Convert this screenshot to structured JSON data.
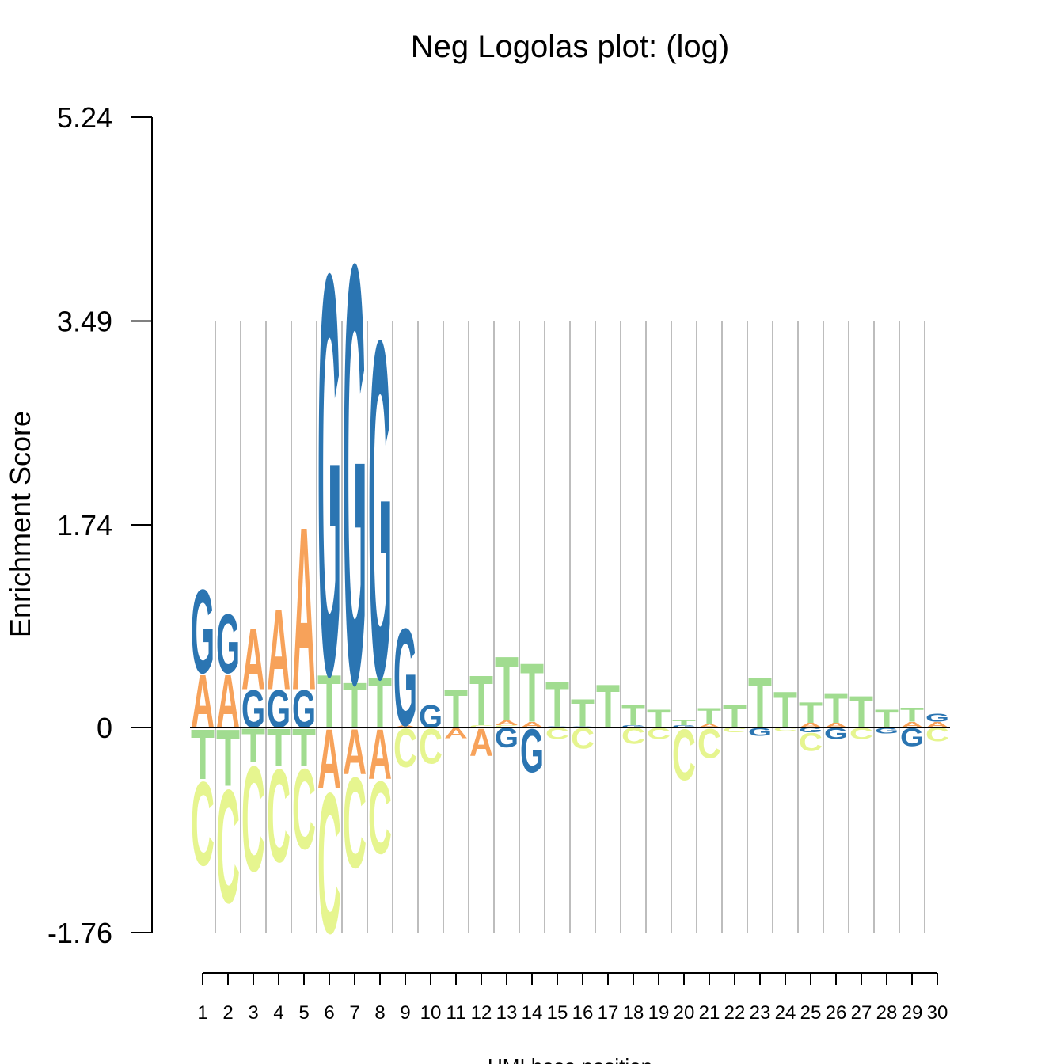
{
  "chart_data": {
    "type": "sequence-logo",
    "title": "Neg Logolas plot: (log)",
    "xlabel": "UMI base position",
    "ylabel": "Enrichment Score",
    "ylim": [
      -1.76,
      5.24
    ],
    "yticks": [
      "5.24",
      "3.49",
      "1.74",
      "0",
      "-1.76"
    ],
    "ytick_values": [
      5.24,
      3.49,
      1.74,
      0,
      -1.76
    ],
    "grid": "vertical",
    "colors": {
      "A": "#f7a25a",
      "C": "#e6f58f",
      "G": "#2b75b2",
      "T": "#a1dc90"
    },
    "positions": [
      {
        "label": "1",
        "pos": [
          [
            "A",
            0.47
          ],
          [
            "G",
            0.74
          ]
        ],
        "neg": [
          [
            "T",
            0.44
          ],
          [
            "C",
            0.74
          ]
        ]
      },
      {
        "label": "2",
        "pos": [
          [
            "A",
            0.47
          ],
          [
            "G",
            0.52
          ]
        ],
        "neg": [
          [
            "T",
            0.5
          ],
          [
            "C",
            1.0
          ]
        ]
      },
      {
        "label": "3",
        "pos": [
          [
            "G",
            0.33
          ],
          [
            "A",
            0.54
          ]
        ],
        "neg": [
          [
            "T",
            0.3
          ],
          [
            "C",
            0.93
          ]
        ]
      },
      {
        "label": "4",
        "pos": [
          [
            "G",
            0.33
          ],
          [
            "A",
            0.71
          ]
        ],
        "neg": [
          [
            "T",
            0.33
          ],
          [
            "C",
            0.82
          ]
        ]
      },
      {
        "label": "5",
        "pos": [
          [
            "G",
            0.33
          ],
          [
            "A",
            1.44
          ]
        ],
        "neg": [
          [
            "T",
            0.33
          ],
          [
            "C",
            0.71
          ]
        ]
      },
      {
        "label": "6",
        "pos": [
          [
            "T",
            0.47
          ],
          [
            "G",
            3.54
          ]
        ],
        "neg": [
          [
            "A",
            0.52
          ],
          [
            "C",
            1.24
          ]
        ]
      },
      {
        "label": "7",
        "pos": [
          [
            "T",
            0.4
          ],
          [
            "G",
            3.7
          ]
        ],
        "neg": [
          [
            "A",
            0.4
          ],
          [
            "C",
            0.8
          ]
        ]
      },
      {
        "label": "8",
        "pos": [
          [
            "T",
            0.44
          ],
          [
            "G",
            2.98
          ]
        ],
        "neg": [
          [
            "A",
            0.44
          ],
          [
            "C",
            0.64
          ]
        ]
      },
      {
        "label": "9",
        "pos": [
          [
            "A",
            0.02
          ],
          [
            "G",
            0.86
          ]
        ],
        "neg": [
          [
            "C",
            0.34
          ]
        ]
      },
      {
        "label": "10",
        "pos": [
          [
            "G",
            0.2
          ]
        ],
        "neg": [
          [
            "C",
            0.31
          ]
        ]
      },
      {
        "label": "11",
        "pos": [
          [
            "T",
            0.34
          ]
        ],
        "neg": [
          [
            "A",
            0.09
          ]
        ]
      },
      {
        "label": "12",
        "pos": [
          [
            "C",
            0.02
          ],
          [
            "T",
            0.44
          ]
        ],
        "neg": [
          [
            "A",
            0.24
          ]
        ]
      },
      {
        "label": "13",
        "pos": [
          [
            "C",
            0.02
          ],
          [
            "A",
            0.04
          ],
          [
            "T",
            0.57
          ]
        ],
        "neg": [
          [
            "G",
            0.17
          ]
        ]
      },
      {
        "label": "14",
        "pos": [
          [
            "A",
            0.05
          ],
          [
            "T",
            0.52
          ]
        ],
        "neg": [
          [
            "G",
            0.38
          ]
        ]
      },
      {
        "label": "15",
        "pos": [
          [
            "G",
            0.01
          ],
          [
            "T",
            0.4
          ]
        ],
        "neg": [
          [
            "C",
            0.1
          ]
        ]
      },
      {
        "label": "16",
        "pos": [
          [
            "G",
            0.01
          ],
          [
            "T",
            0.24
          ]
        ],
        "neg": [
          [
            "C",
            0.18
          ]
        ]
      },
      {
        "label": "17",
        "pos": [
          [
            "T",
            0.38
          ]
        ],
        "neg": []
      },
      {
        "label": "18",
        "pos": [
          [
            "G",
            0.02
          ],
          [
            "T",
            0.18
          ]
        ],
        "neg": [
          [
            "C",
            0.14
          ]
        ]
      },
      {
        "label": "19",
        "pos": [
          [
            "T",
            0.16
          ]
        ],
        "neg": [
          [
            "C",
            0.1
          ]
        ]
      },
      {
        "label": "20",
        "pos": [
          [
            "G",
            0.02
          ],
          [
            "T",
            0.04
          ]
        ],
        "neg": [
          [
            "C",
            0.45
          ]
        ]
      },
      {
        "label": "21",
        "pos": [
          [
            "A",
            0.03
          ],
          [
            "T",
            0.14
          ]
        ],
        "neg": [
          [
            "C",
            0.26
          ]
        ]
      },
      {
        "label": "22",
        "pos": [
          [
            "T",
            0.2
          ]
        ],
        "neg": [
          [
            "C",
            0.04
          ]
        ]
      },
      {
        "label": "23",
        "pos": [
          [
            "T",
            0.44
          ]
        ],
        "neg": [
          [
            "G",
            0.07
          ]
        ]
      },
      {
        "label": "24",
        "pos": [
          [
            "T",
            0.32
          ]
        ],
        "neg": [
          [
            "C",
            0.03
          ]
        ]
      },
      {
        "label": "25",
        "pos": [
          [
            "A",
            0.04
          ],
          [
            "T",
            0.18
          ]
        ],
        "neg": [
          [
            "G",
            0.04
          ],
          [
            "C",
            0.16
          ]
        ]
      },
      {
        "label": "26",
        "pos": [
          [
            "A",
            0.04
          ],
          [
            "T",
            0.26
          ]
        ],
        "neg": [
          [
            "G",
            0.1
          ]
        ]
      },
      {
        "label": "27",
        "pos": [
          [
            "T",
            0.28
          ]
        ],
        "neg": [
          [
            "C",
            0.1
          ]
        ]
      },
      {
        "label": "28",
        "pos": [
          [
            "T",
            0.16
          ]
        ],
        "neg": [
          [
            "G",
            0.05
          ]
        ]
      },
      {
        "label": "29",
        "pos": [
          [
            "A",
            0.05
          ],
          [
            "T",
            0.12
          ]
        ],
        "neg": [
          [
            "G",
            0.16
          ]
        ]
      },
      {
        "label": "30",
        "pos": [
          [
            "A",
            0.05
          ],
          [
            "G",
            0.07
          ]
        ],
        "neg": [
          [
            "C",
            0.12
          ]
        ]
      }
    ]
  }
}
